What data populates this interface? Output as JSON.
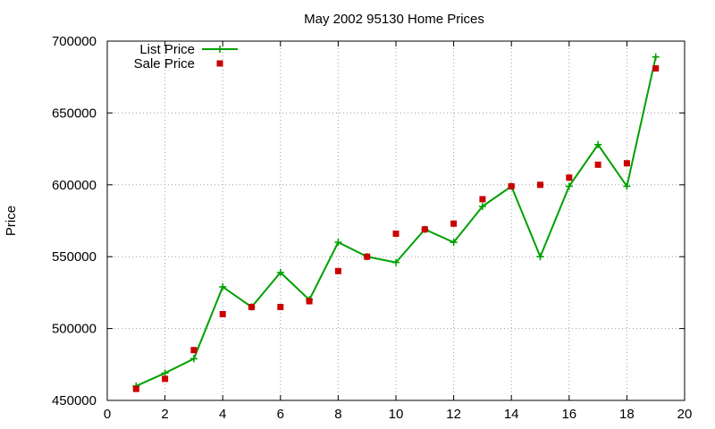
{
  "chart_data": {
    "type": "line",
    "title": "May 2002 95130 Home Prices",
    "xlabel": "",
    "ylabel": "Price",
    "xlim": [
      0,
      20
    ],
    "ylim": [
      450000,
      700000
    ],
    "x_ticks": [
      "0",
      "2",
      "4",
      "6",
      "8",
      "10",
      "12",
      "14",
      "16",
      "18",
      "20"
    ],
    "y_ticks": [
      "450000",
      "500000",
      "550000",
      "600000",
      "650000",
      "700000"
    ],
    "grid": true,
    "legend_position": "top-left",
    "series": [
      {
        "name": "List Price",
        "style": "line-points",
        "marker": "plus",
        "color": "#00a000",
        "points": [
          [
            1,
            460000
          ],
          [
            2,
            469000
          ],
          [
            3,
            479000
          ],
          [
            4,
            529000
          ],
          [
            5,
            515000
          ],
          [
            6,
            539000
          ],
          [
            7,
            520000
          ],
          [
            8,
            560000
          ],
          [
            9,
            550000
          ],
          [
            10,
            546000
          ],
          [
            11,
            569000
          ],
          [
            12,
            560000
          ],
          [
            13,
            585000
          ],
          [
            14,
            599000
          ],
          [
            15,
            550000
          ],
          [
            16,
            599000
          ],
          [
            17,
            628000
          ],
          [
            18,
            599000
          ],
          [
            19,
            689000
          ]
        ]
      },
      {
        "name": "Sale Price",
        "style": "points",
        "marker": "square",
        "color": "#cc0000",
        "points": [
          [
            1,
            458000
          ],
          [
            2,
            465000
          ],
          [
            3,
            485000
          ],
          [
            4,
            510000
          ],
          [
            5,
            515000
          ],
          [
            6,
            515000
          ],
          [
            7,
            519000
          ],
          [
            8,
            540000
          ],
          [
            9,
            550000
          ],
          [
            10,
            566000
          ],
          [
            11,
            569000
          ],
          [
            12,
            573000
          ],
          [
            13,
            590000
          ],
          [
            14,
            599000
          ],
          [
            15,
            600000
          ],
          [
            16,
            605000
          ],
          [
            17,
            614000
          ],
          [
            18,
            615000
          ],
          [
            19,
            681000
          ]
        ]
      }
    ]
  }
}
